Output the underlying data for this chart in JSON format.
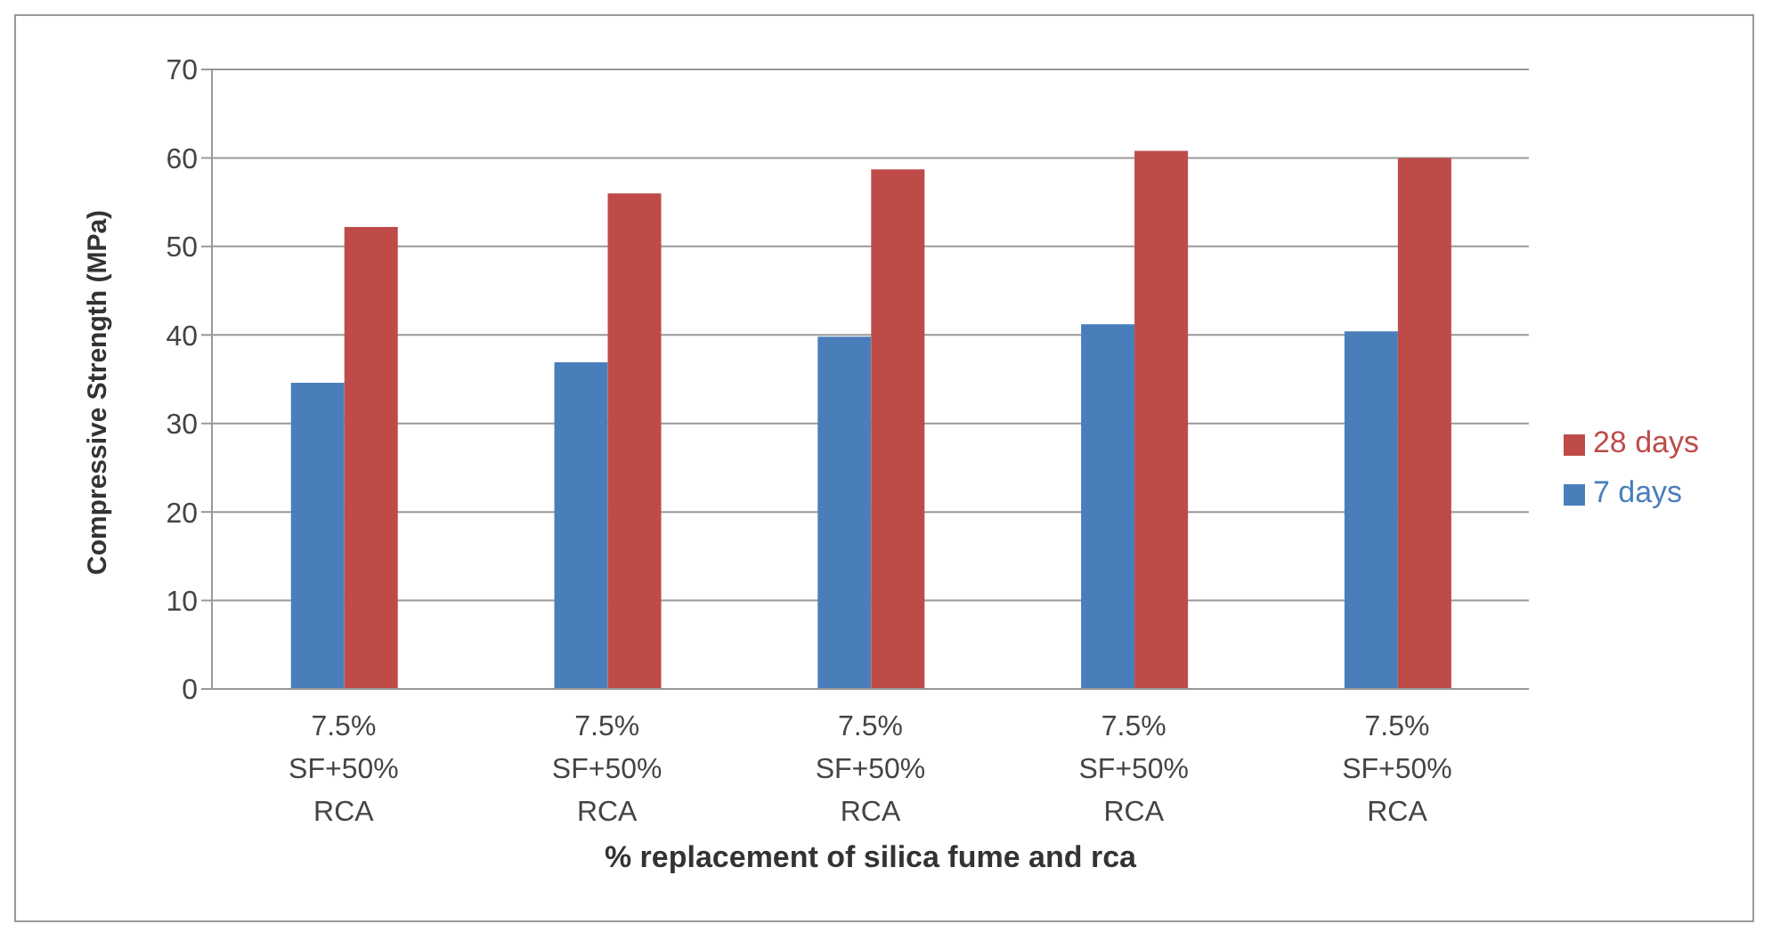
{
  "chart_data": {
    "type": "bar",
    "xlabel": "% replacement of silica fume and rca",
    "ylabel": "Compressive Strength (MPa)",
    "categories": [
      "7.5% SF+50% RCA",
      "7.5% SF+50% RCA",
      "7.5% SF+50% RCA",
      "7.5% SF+50% RCA",
      "7.5% SF+50% RCA"
    ],
    "series": [
      {
        "name": "7 days",
        "color": "#4a7ebb",
        "values": [
          34.6,
          36.9,
          39.8,
          41.2,
          40.4
        ]
      },
      {
        "name": "28 days",
        "color": "#be4b48",
        "values": [
          52.2,
          56.0,
          58.7,
          60.8,
          60.0
        ]
      }
    ],
    "ylim": [
      0,
      70
    ],
    "yticks": [
      0,
      10,
      20,
      30,
      40,
      50,
      60,
      70
    ],
    "grid": "y",
    "legend": "right"
  }
}
